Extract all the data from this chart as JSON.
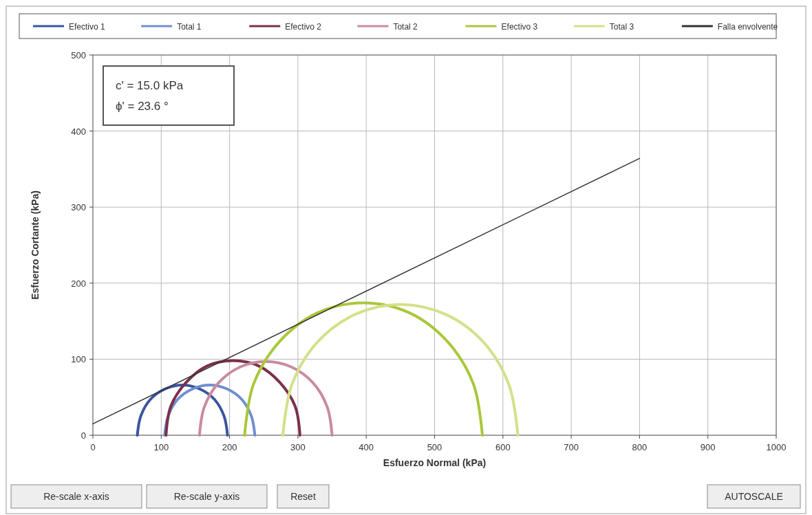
{
  "chart_data": {
    "type": "line",
    "xlabel": "Esfuerzo Normal (kPa)",
    "ylabel": "Esfuerzo Cortante  (kPa)",
    "xlim": [
      0,
      1000
    ],
    "xticks": [
      0,
      100,
      200,
      300,
      400,
      500,
      600,
      700,
      800,
      900,
      1000
    ],
    "ylim": [
      0,
      500
    ],
    "yticks": [
      0,
      100,
      200,
      300,
      400,
      500
    ],
    "grid": true,
    "legend": "top",
    "marker": "none",
    "line_style": "solid",
    "series": [
      {
        "name": "Efectivo 1",
        "color": "#3a55a0",
        "x": [
          197,
          192,
          178,
          156,
          131,
          106,
          84,
          70,
          65
        ],
        "values": [
          0,
          25,
          47,
          61,
          66,
          61,
          47,
          25,
          0
        ]
      },
      {
        "name": "Total 1",
        "color": "#6f8fd0",
        "x": [
          237,
          232,
          218,
          196,
          171,
          146,
          124,
          110,
          105
        ],
        "values": [
          0,
          25,
          47,
          61,
          66,
          61,
          47,
          25,
          0
        ]
      },
      {
        "name": "Efectivo 2",
        "color": "#7a3048",
        "x": [
          303,
          296,
          274,
          243,
          205,
          167,
          136,
          114,
          107
        ],
        "values": [
          0,
          38,
          69,
          91,
          98,
          91,
          69,
          38,
          0
        ]
      },
      {
        "name": "Total 2",
        "color": "#c98aa0",
        "x": [
          350,
          343,
          322,
          290,
          253,
          216,
          184,
          163,
          156
        ],
        "values": [
          0,
          37,
          69,
          90,
          97,
          90,
          69,
          37,
          0
        ]
      },
      {
        "name": "Efectivo 3",
        "color": "#a8c83a",
        "x": [
          570,
          557,
          519,
          463,
          396,
          329,
          273,
          235,
          222
        ],
        "values": [
          0,
          67,
          123,
          161,
          174,
          161,
          123,
          67,
          0
        ]
      },
      {
        "name": "Total 3",
        "color": "#d4e08a",
        "x": [
          622,
          609,
          572,
          516,
          450,
          384,
          328,
          291,
          278
        ],
        "values": [
          0,
          66,
          122,
          159,
          172,
          159,
          122,
          66,
          0
        ]
      },
      {
        "name": "Falla envolvente",
        "color": "#333333",
        "x": [
          0,
          800
        ],
        "values": [
          15,
          364
        ]
      }
    ],
    "annotations": [
      "c' =  15.0 kPa",
      "ϕ' =  23.6 °",
      "Re-scale x-axis",
      "Re-scale y-axis",
      "Reset",
      "AUTOSCALE"
    ]
  }
}
